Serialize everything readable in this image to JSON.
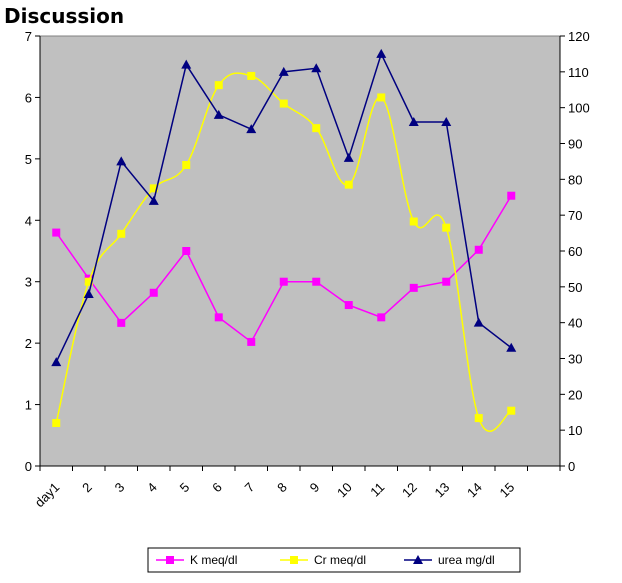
{
  "page": {
    "heading": "Discussion"
  },
  "chart_data": {
    "type": "line",
    "title": "",
    "categories": [
      "day1",
      "2",
      "3",
      "4",
      "5",
      "6",
      "7",
      "8",
      "9",
      "10",
      "11",
      "12",
      "13",
      "14",
      "15"
    ],
    "y_left": {
      "min": 0,
      "max": 7,
      "ticks": [
        0,
        1,
        2,
        3,
        4,
        5,
        6,
        7
      ]
    },
    "y_right": {
      "min": 0,
      "max": 120,
      "ticks": [
        0,
        10,
        20,
        30,
        40,
        50,
        60,
        70,
        80,
        90,
        100,
        110,
        120
      ]
    },
    "grid": false,
    "plot_background": "#c0c0c0",
    "legend_position": "bottom",
    "series": [
      {
        "name": "K meq/dl",
        "axis": "left",
        "color": "#ff00ff",
        "marker": "square",
        "smooth": false,
        "values": [
          3.8,
          3.05,
          2.33,
          2.82,
          3.5,
          2.42,
          2.02,
          3.0,
          3.0,
          2.62,
          2.42,
          2.9,
          3.0,
          3.52,
          4.4
        ]
      },
      {
        "name": "Cr meq/dl",
        "axis": "left",
        "color": "#ffff00",
        "marker": "square",
        "smooth": true,
        "values": [
          0.7,
          3.0,
          3.78,
          4.52,
          4.9,
          6.2,
          6.35,
          5.9,
          5.5,
          4.58,
          6.0,
          3.98,
          3.88,
          0.78,
          0.9
        ]
      },
      {
        "name": "urea mg/dl",
        "axis": "right",
        "color": "#000080",
        "marker": "triangle",
        "smooth": false,
        "values": [
          29,
          48,
          85,
          74,
          112,
          98,
          94,
          110,
          111,
          86,
          115,
          96,
          96,
          40,
          33
        ]
      }
    ]
  }
}
